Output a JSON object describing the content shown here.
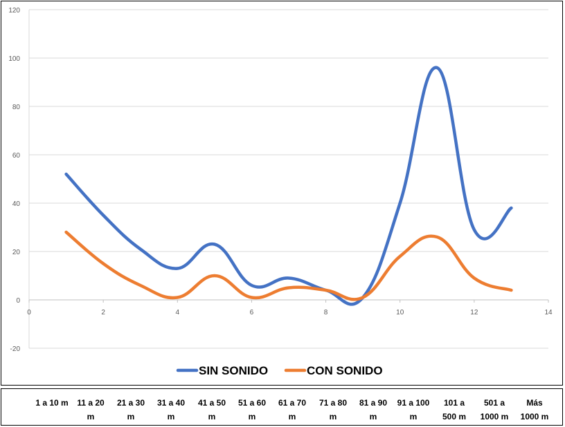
{
  "chart_data": {
    "type": "line",
    "x": [
      1,
      2,
      3,
      4,
      5,
      6,
      7,
      8,
      9,
      10,
      11,
      12,
      13
    ],
    "xlim": [
      0,
      14
    ],
    "ylim": [
      -20,
      120
    ],
    "x_ticks": [
      "0",
      "2",
      "4",
      "6",
      "8",
      "10",
      "12",
      "14"
    ],
    "y_ticks": [
      "-20",
      "0",
      "20",
      "40",
      "60",
      "80",
      "100",
      "120"
    ],
    "grid": "horizontal",
    "legend_position": "bottom",
    "series": [
      {
        "name": "SIN SONIDO",
        "color": "#4472C4",
        "values": [
          52,
          35,
          21,
          13,
          23,
          6,
          9,
          4,
          1,
          40,
          96,
          29,
          38
        ]
      },
      {
        "name": "CON SONIDO",
        "color": "#ED7D31",
        "values": [
          28,
          15,
          6,
          1,
          10,
          1,
          5,
          4,
          1,
          18,
          26,
          9,
          4
        ]
      }
    ],
    "categories": [
      [
        "1 a 10 m",
        ""
      ],
      [
        "11 a 20",
        "m"
      ],
      [
        "21 a 30",
        "m"
      ],
      [
        "31 a 40",
        "m"
      ],
      [
        "41 a 50",
        "m"
      ],
      [
        "51 a 60",
        "m"
      ],
      [
        "61 a 70",
        "m"
      ],
      [
        "71 a 80",
        "m"
      ],
      [
        "81 a 90",
        "m"
      ],
      [
        "91 a 100",
        "m"
      ],
      [
        "101 a",
        "500 m"
      ],
      [
        "501 a",
        "1000 m"
      ],
      [
        "Más",
        "1000 m"
      ]
    ]
  }
}
